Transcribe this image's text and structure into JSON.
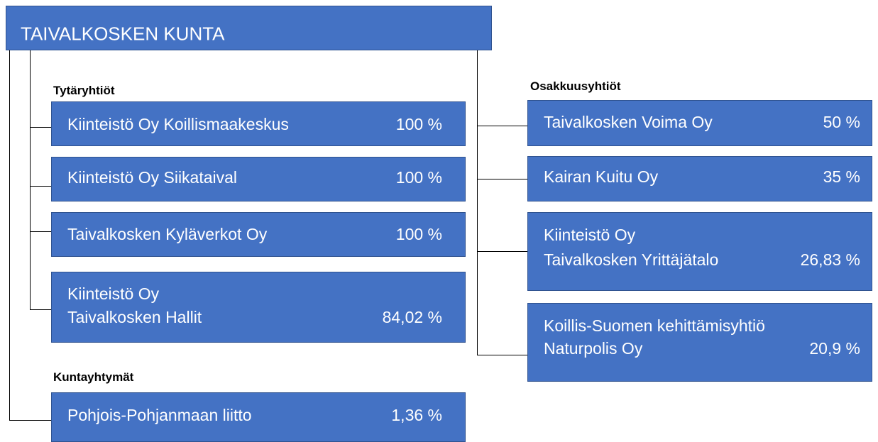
{
  "header": {
    "title": "TAIVALKOSKEN KUNTA"
  },
  "sections": [
    {
      "heading": "Tytäryhtiöt",
      "items": [
        {
          "lines": [
            "Kiinteistö Oy Koillismaakeskus"
          ],
          "share": "100 %"
        },
        {
          "lines": [
            "Kiinteistö Oy Siikataival"
          ],
          "share": "100 %"
        },
        {
          "lines": [
            "Taivalkosken Kyläverkot Oy"
          ],
          "share": "100 %"
        },
        {
          "lines": [
            "Kiinteistö Oy",
            "Taivalkosken Hallit"
          ],
          "share": "84,02 %"
        }
      ]
    },
    {
      "heading": "Kuntayhtymät",
      "items": [
        {
          "lines": [
            "Pohjois-Pohjanmaan liitto"
          ],
          "share": "1,36 %"
        }
      ]
    },
    {
      "heading": "Osakkuusyhtiöt",
      "items": [
        {
          "lines": [
            "Taivalkosken Voima Oy"
          ],
          "share": "50 %"
        },
        {
          "lines": [
            "Kairan Kuitu Oy"
          ],
          "share": "35 %"
        },
        {
          "lines": [
            "Kiinteistö Oy",
            "Taivalkosken Yrittäjätalo"
          ],
          "share": "26,83 %"
        },
        {
          "lines": [
            "Koillis-Suomen kehittämisyhtiö",
            "Naturpolis Oy"
          ],
          "share": "20,9 %"
        }
      ]
    }
  ]
}
